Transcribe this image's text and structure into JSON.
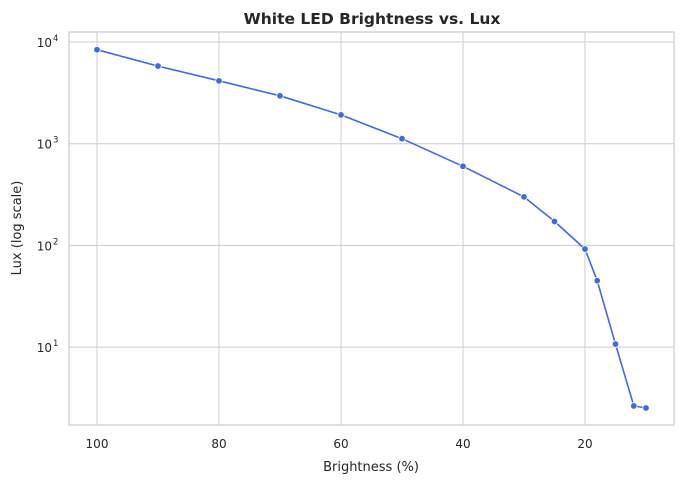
{
  "chart_data": {
    "type": "line",
    "title": "White LED Brightness vs. Lux",
    "xlabel": "Brightness (%)",
    "ylabel": "Lux (log scale)",
    "yscale": "log",
    "x_inverted": true,
    "xlim": [
      104.5,
      5.5
    ],
    "ylim": [
      1.75,
      13500
    ],
    "grid": true,
    "legend": null,
    "x_ticks": [
      100,
      80,
      60,
      40,
      20
    ],
    "x_tick_labels": [
      "100",
      "80",
      "60",
      "40",
      "20"
    ],
    "y_ticks": [
      10,
      100,
      1000,
      10000
    ],
    "y_tick_labels": [
      {
        "base": "10",
        "exp": "1"
      },
      {
        "base": "10",
        "exp": "2"
      },
      {
        "base": "10",
        "exp": "3"
      },
      {
        "base": "10",
        "exp": "4"
      }
    ],
    "series": [
      {
        "name": "White LED",
        "color": "#4169e1",
        "marker": "o",
        "x": [
          100,
          90,
          80,
          70,
          60,
          50,
          40,
          30,
          25,
          20,
          18,
          15,
          12,
          10
        ],
        "values": [
          8400,
          5800,
          4150,
          2960,
          1920,
          1120,
          600,
          300,
          172,
          92,
          45,
          10.7,
          2.64,
          2.52
        ]
      }
    ]
  },
  "colors": {
    "series": "#4169e1",
    "grid": "#cccccc",
    "text": "#262626",
    "background": "#ffffff"
  }
}
